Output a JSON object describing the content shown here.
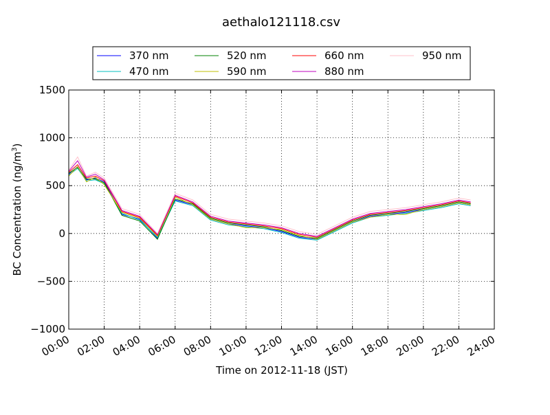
{
  "chart_data": {
    "type": "line",
    "title": "aethalo121118.csv",
    "xlabel": "Time on 2012-11-18 (JST)",
    "ylabel_text": "BC Concentration (ng/m",
    "ylabel_sup": "3",
    "ylabel_close": ")",
    "xlim": [
      "00:00",
      "24:00"
    ],
    "ylim": [
      -1000,
      1500
    ],
    "yticks": [
      -1000,
      -500,
      0,
      500,
      1000,
      1500
    ],
    "ytick_labels": [
      "−1000",
      "−500",
      "0",
      "500",
      "1000",
      "1500"
    ],
    "xticks": [
      "00:00",
      "02:00",
      "04:00",
      "06:00",
      "08:00",
      "10:00",
      "12:00",
      "14:00",
      "16:00",
      "18:00",
      "20:00",
      "22:00",
      "24:00"
    ],
    "grid": true,
    "legend_position": "top",
    "series": [
      {
        "name": "370 nm",
        "color": "#0000ff",
        "x": [
          "00:00",
          "00:30",
          "01:00",
          "01:30",
          "02:00",
          "03:00",
          "04:00",
          "05:00",
          "06:00",
          "07:00",
          "08:00",
          "09:00",
          "10:00",
          "11:00",
          "12:00",
          "13:00",
          "14:00",
          "15:00",
          "16:00",
          "17:00",
          "18:00",
          "19:00",
          "20:00",
          "21:00",
          "22:00",
          "22:40"
        ],
        "y": [
          620,
          700,
          560,
          580,
          540,
          200,
          150,
          -50,
          350,
          300,
          150,
          100,
          80,
          60,
          20,
          -40,
          -60,
          30,
          120,
          180,
          200,
          220,
          250,
          280,
          320,
          300
        ]
      },
      {
        "name": "470 nm",
        "color": "#00bfbf",
        "x": [
          "00:00",
          "00:30",
          "01:00",
          "01:30",
          "02:00",
          "03:00",
          "04:00",
          "05:00",
          "06:00",
          "07:00",
          "08:00",
          "09:00",
          "10:00",
          "11:00",
          "12:00",
          "13:00",
          "14:00",
          "15:00",
          "16:00",
          "17:00",
          "18:00",
          "19:00",
          "20:00",
          "21:00",
          "22:00",
          "22:40"
        ],
        "y": [
          610,
          680,
          550,
          560,
          520,
          210,
          140,
          -40,
          340,
          290,
          140,
          90,
          70,
          50,
          10,
          -50,
          -70,
          20,
          110,
          170,
          190,
          210,
          240,
          270,
          310,
          290
        ]
      },
      {
        "name": "520 nm",
        "color": "#008000",
        "x": [
          "00:00",
          "00:30",
          "01:00",
          "01:30",
          "02:00",
          "03:00",
          "04:00",
          "05:00",
          "06:00",
          "07:00",
          "08:00",
          "09:00",
          "10:00",
          "11:00",
          "12:00",
          "13:00",
          "14:00",
          "15:00",
          "16:00",
          "17:00",
          "18:00",
          "19:00",
          "20:00",
          "21:00",
          "22:00",
          "22:40"
        ],
        "y": [
          630,
          690,
          570,
          570,
          530,
          190,
          130,
          -60,
          360,
          310,
          160,
          110,
          90,
          70,
          30,
          -30,
          -50,
          40,
          130,
          190,
          210,
          230,
          260,
          290,
          330,
          310
        ]
      },
      {
        "name": "590 nm",
        "color": "#bfbf00",
        "x": [
          "00:00",
          "00:30",
          "01:00",
          "01:30",
          "02:00",
          "03:00",
          "04:00",
          "05:00",
          "06:00",
          "07:00",
          "08:00",
          "09:00",
          "10:00",
          "11:00",
          "12:00",
          "13:00",
          "14:00",
          "15:00",
          "16:00",
          "17:00",
          "18:00",
          "19:00",
          "20:00",
          "21:00",
          "22:00",
          "22:40"
        ],
        "y": [
          600,
          700,
          540,
          590,
          510,
          220,
          160,
          -30,
          380,
          300,
          150,
          100,
          60,
          60,
          40,
          -20,
          -60,
          30,
          120,
          170,
          200,
          200,
          250,
          280,
          320,
          300
        ]
      },
      {
        "name": "660 nm",
        "color": "#ff0000",
        "x": [
          "00:00",
          "00:30",
          "01:00",
          "01:30",
          "02:00",
          "03:00",
          "04:00",
          "05:00",
          "06:00",
          "07:00",
          "08:00",
          "09:00",
          "10:00",
          "11:00",
          "12:00",
          "13:00",
          "14:00",
          "15:00",
          "16:00",
          "17:00",
          "18:00",
          "19:00",
          "20:00",
          "21:00",
          "22:00",
          "22:40"
        ],
        "y": [
          640,
          720,
          580,
          600,
          550,
          230,
          170,
          -20,
          390,
          320,
          170,
          120,
          100,
          80,
          50,
          -10,
          -40,
          50,
          140,
          200,
          220,
          240,
          270,
          300,
          340,
          320
        ]
      },
      {
        "name": "880 nm",
        "color": "#bf00bf",
        "x": [
          "00:00",
          "00:30",
          "01:00",
          "01:30",
          "02:00",
          "03:00",
          "04:00",
          "05:00",
          "06:00",
          "07:00",
          "08:00",
          "09:00",
          "10:00",
          "11:00",
          "12:00",
          "13:00",
          "14:00",
          "15:00",
          "16:00",
          "17:00",
          "18:00",
          "19:00",
          "20:00",
          "21:00",
          "22:00",
          "22:40"
        ],
        "y": [
          650,
          760,
          590,
          620,
          560,
          240,
          180,
          -10,
          400,
          330,
          180,
          130,
          110,
          90,
          60,
          0,
          -30,
          60,
          150,
          210,
          230,
          250,
          280,
          310,
          350,
          330
        ]
      },
      {
        "name": "950 nm",
        "color": "#ffc0cb",
        "x": [
          "00:00",
          "00:30",
          "01:00",
          "01:30",
          "02:00",
          "03:00",
          "04:00",
          "05:00",
          "06:00",
          "07:00",
          "08:00",
          "09:00",
          "10:00",
          "11:00",
          "12:00",
          "13:00",
          "14:00",
          "15:00",
          "16:00",
          "17:00",
          "18:00",
          "19:00",
          "20:00",
          "21:00",
          "22:00",
          "22:40"
        ],
        "y": [
          660,
          800,
          600,
          640,
          580,
          260,
          200,
          0,
          420,
          350,
          200,
          150,
          130,
          110,
          80,
          20,
          -10,
          80,
          170,
          230,
          250,
          270,
          300,
          330,
          370,
          350
        ]
      }
    ]
  }
}
